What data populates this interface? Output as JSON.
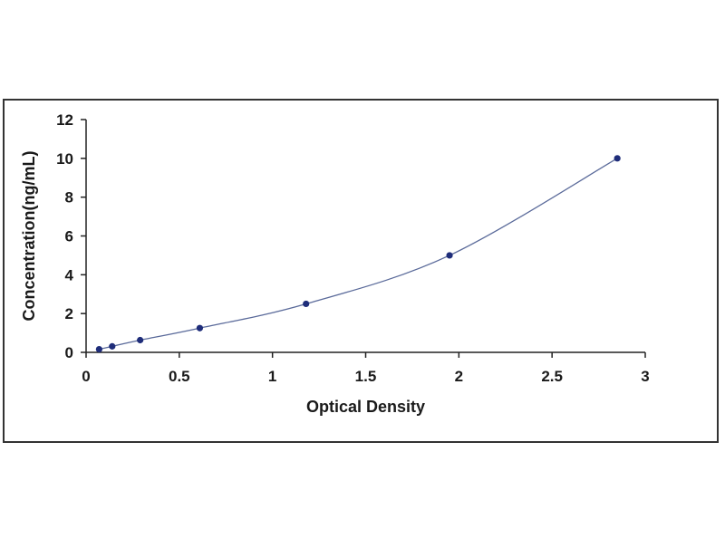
{
  "chart_data": {
    "type": "scatter",
    "title": "",
    "xlabel": "Optical Density",
    "ylabel": "Concentration(ng/mL)",
    "xlim": [
      0,
      3
    ],
    "ylim": [
      0,
      12
    ],
    "x_ticks": [
      0,
      0.5,
      1,
      1.5,
      2,
      2.5,
      3
    ],
    "x_tick_labels": [
      "0",
      "0.5",
      "1",
      "1.5",
      "2",
      "2.5",
      "3"
    ],
    "y_ticks": [
      0,
      2,
      4,
      6,
      8,
      10,
      12
    ],
    "y_tick_labels": [
      "0",
      "2",
      "4",
      "6",
      "8",
      "10",
      "12"
    ],
    "grid": false,
    "legend": "none",
    "series": [
      {
        "x": [
          0.07,
          0.14,
          0.29,
          0.61,
          1.18,
          1.95,
          2.85
        ],
        "y": [
          0.16,
          0.31,
          0.63,
          1.25,
          2.5,
          5,
          10
        ],
        "trendline": true
      }
    ],
    "colors": {
      "marker": "#1f2d7a",
      "line": "#5a6a9a",
      "axis": "#222222",
      "frame": "#333333"
    }
  }
}
